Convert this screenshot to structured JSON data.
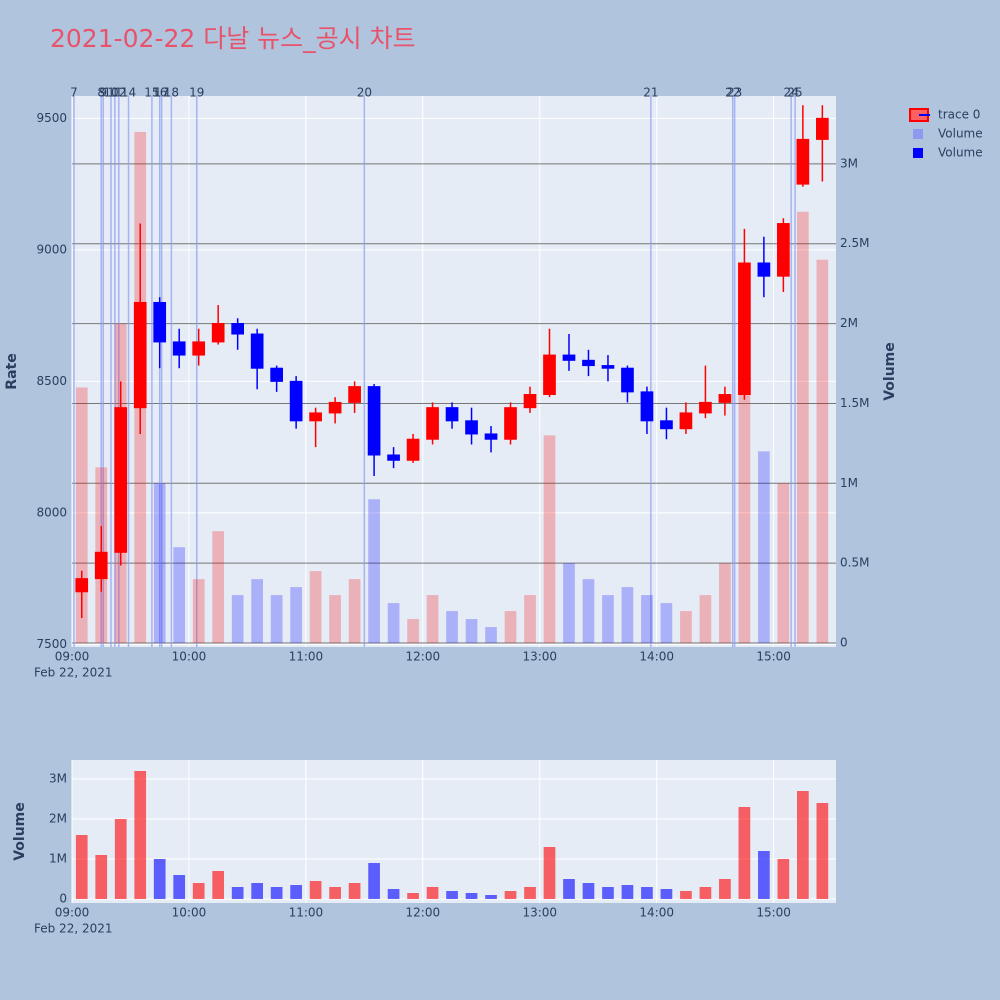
{
  "title": "2021-02-22 다날 뉴스_공시 차트",
  "chart_data": [
    {
      "type": "candlestick",
      "name": "trace 0",
      "x": [
        "09:00",
        "09:10",
        "09:20",
        "09:30",
        "09:40",
        "09:50",
        "10:00",
        "10:10",
        "10:20",
        "10:30",
        "10:40",
        "10:50",
        "11:00",
        "11:10",
        "11:20",
        "11:30",
        "11:40",
        "11:50",
        "12:00",
        "12:10",
        "12:20",
        "12:30",
        "12:40",
        "12:50",
        "13:00",
        "13:10",
        "13:20",
        "13:30",
        "13:40",
        "13:50",
        "14:00",
        "14:10",
        "14:20",
        "14:30",
        "14:40",
        "14:50",
        "15:00",
        "15:10",
        "15:20"
      ],
      "open": [
        7700,
        7750,
        7850,
        8400,
        8800,
        8650,
        8600,
        8650,
        8720,
        8680,
        8550,
        8500,
        8350,
        8380,
        8420,
        8480,
        8220,
        8200,
        8280,
        8400,
        8350,
        8300,
        8280,
        8400,
        8450,
        8600,
        8580,
        8560,
        8550,
        8460,
        8350,
        8320,
        8380,
        8420,
        8450,
        8950,
        8900,
        9250,
        9420
      ],
      "high": [
        7780,
        7950,
        8500,
        9100,
        8820,
        8700,
        8700,
        8790,
        8740,
        8700,
        8560,
        8520,
        8400,
        8440,
        8500,
        8490,
        8250,
        8300,
        8420,
        8420,
        8400,
        8330,
        8420,
        8480,
        8700,
        8680,
        8620,
        8600,
        8560,
        8480,
        8400,
        8420,
        8560,
        8480,
        9080,
        9050,
        9120,
        9550,
        9550
      ],
      "low": [
        7600,
        7700,
        7800,
        8300,
        8550,
        8550,
        8560,
        8640,
        8620,
        8470,
        8460,
        8320,
        8250,
        8340,
        8380,
        8140,
        8170,
        8190,
        8260,
        8320,
        8260,
        8230,
        8260,
        8380,
        8440,
        8540,
        8520,
        8500,
        8420,
        8300,
        8280,
        8300,
        8360,
        8370,
        8430,
        8820,
        8840,
        9240,
        9260
      ],
      "close": [
        7750,
        7850,
        8400,
        8800,
        8650,
        8600,
        8650,
        8720,
        8680,
        8550,
        8500,
        8350,
        8380,
        8420,
        8480,
        8220,
        8200,
        8280,
        8400,
        8350,
        8300,
        8280,
        8400,
        8450,
        8600,
        8580,
        8560,
        8550,
        8460,
        8350,
        8320,
        8380,
        8420,
        8450,
        8950,
        8900,
        9100,
        9420,
        9500
      ],
      "increasing_color": "#ff0000",
      "decreasing_color": "#0000ff",
      "volume": {
        "name": "Volume",
        "axis": "y2",
        "values": [
          1600000,
          1100000,
          2000000,
          3200000,
          1000000,
          600000,
          400000,
          700000,
          300000,
          400000,
          300000,
          350000,
          450000,
          300000,
          400000,
          900000,
          250000,
          150000,
          300000,
          200000,
          150000,
          100000,
          200000,
          300000,
          1300000,
          500000,
          400000,
          300000,
          350000,
          300000,
          250000,
          200000,
          300000,
          500000,
          2300000,
          1200000,
          1000000,
          2700000,
          2400000
        ]
      },
      "legend": [
        {
          "name": "Volume",
          "color": "#8c9bf0"
        },
        {
          "name": "Volume",
          "color": "#0000ff"
        }
      ],
      "ylabel": "Rate",
      "y2label": "Volume",
      "xlim": [
        "09:00",
        "15:32"
      ],
      "xticks": [
        "09:00",
        "10:00",
        "11:00",
        "12:00",
        "13:00",
        "14:00",
        "15:00"
      ],
      "xdate": "Feb 22, 2021",
      "ylim": [
        7490,
        9585
      ],
      "yticks": [
        7500,
        8000,
        8500,
        9000,
        9500
      ],
      "y2lim": [
        -25000,
        3425000
      ],
      "y2ticks": [
        0,
        {
          "value": 500000,
          "label": "0.5M"
        },
        {
          "value": 1000000,
          "label": "1M"
        },
        {
          "value": 1500000,
          "label": "1.5M"
        },
        {
          "value": 2000000,
          "label": "2M"
        },
        {
          "value": 2500000,
          "label": "2.5M"
        },
        {
          "value": 3000000,
          "label": "3M"
        }
      ],
      "events": [
        {
          "x": "09:01",
          "label": "7"
        },
        {
          "x": "09:15",
          "label": "8"
        },
        {
          "x": "09:16",
          "label": "9"
        },
        {
          "x": "09:20",
          "label": "10"
        },
        {
          "x": "09:22",
          "label": "11"
        },
        {
          "x": "09:24",
          "label": "12"
        },
        {
          "x": "09:29",
          "label": "14"
        },
        {
          "x": "09:41",
          "label": "15"
        },
        {
          "x": "09:45",
          "label": "16"
        },
        {
          "x": "09:46",
          "label": "17"
        },
        {
          "x": "09:51",
          "label": "18"
        },
        {
          "x": "10:04",
          "label": "19"
        },
        {
          "x": "11:30",
          "label": "20"
        },
        {
          "x": "13:57",
          "label": "21"
        },
        {
          "x": "14:39",
          "label": "22"
        },
        {
          "x": "14:40",
          "label": "23"
        },
        {
          "x": "15:09",
          "label": "24"
        },
        {
          "x": "15:11",
          "label": "25"
        }
      ]
    },
    {
      "type": "bar",
      "x": [
        "09:00",
        "09:10",
        "09:20",
        "09:30",
        "09:40",
        "09:50",
        "10:00",
        "10:10",
        "10:20",
        "10:30",
        "10:40",
        "10:50",
        "11:00",
        "11:10",
        "11:20",
        "11:30",
        "11:40",
        "11:50",
        "12:00",
        "12:10",
        "12:20",
        "12:30",
        "12:40",
        "12:50",
        "13:00",
        "13:10",
        "13:20",
        "13:30",
        "13:40",
        "13:50",
        "14:00",
        "14:10",
        "14:20",
        "14:30",
        "14:40",
        "14:50",
        "15:00",
        "15:10",
        "15:20"
      ],
      "values": [
        1600000,
        1100000,
        2000000,
        3200000,
        1000000,
        600000,
        400000,
        700000,
        300000,
        400000,
        300000,
        350000,
        450000,
        300000,
        400000,
        900000,
        250000,
        150000,
        300000,
        200000,
        150000,
        100000,
        200000,
        300000,
        1300000,
        500000,
        400000,
        300000,
        350000,
        300000,
        250000,
        200000,
        300000,
        500000,
        2300000,
        1200000,
        1000000,
        2700000,
        2400000
      ],
      "ylabel": "Volume",
      "xlim": [
        "09:00",
        "15:32"
      ],
      "xticks": [
        "09:00",
        "10:00",
        "11:00",
        "12:00",
        "13:00",
        "14:00",
        "15:00"
      ],
      "xdate": "Feb 22, 2021",
      "ylim": [
        -100000,
        3475000
      ],
      "yticks": [
        0,
        {
          "value": 1000000,
          "label": "1M"
        },
        {
          "value": 2000000,
          "label": "2M"
        },
        {
          "value": 3000000,
          "label": "3M"
        }
      ]
    }
  ]
}
